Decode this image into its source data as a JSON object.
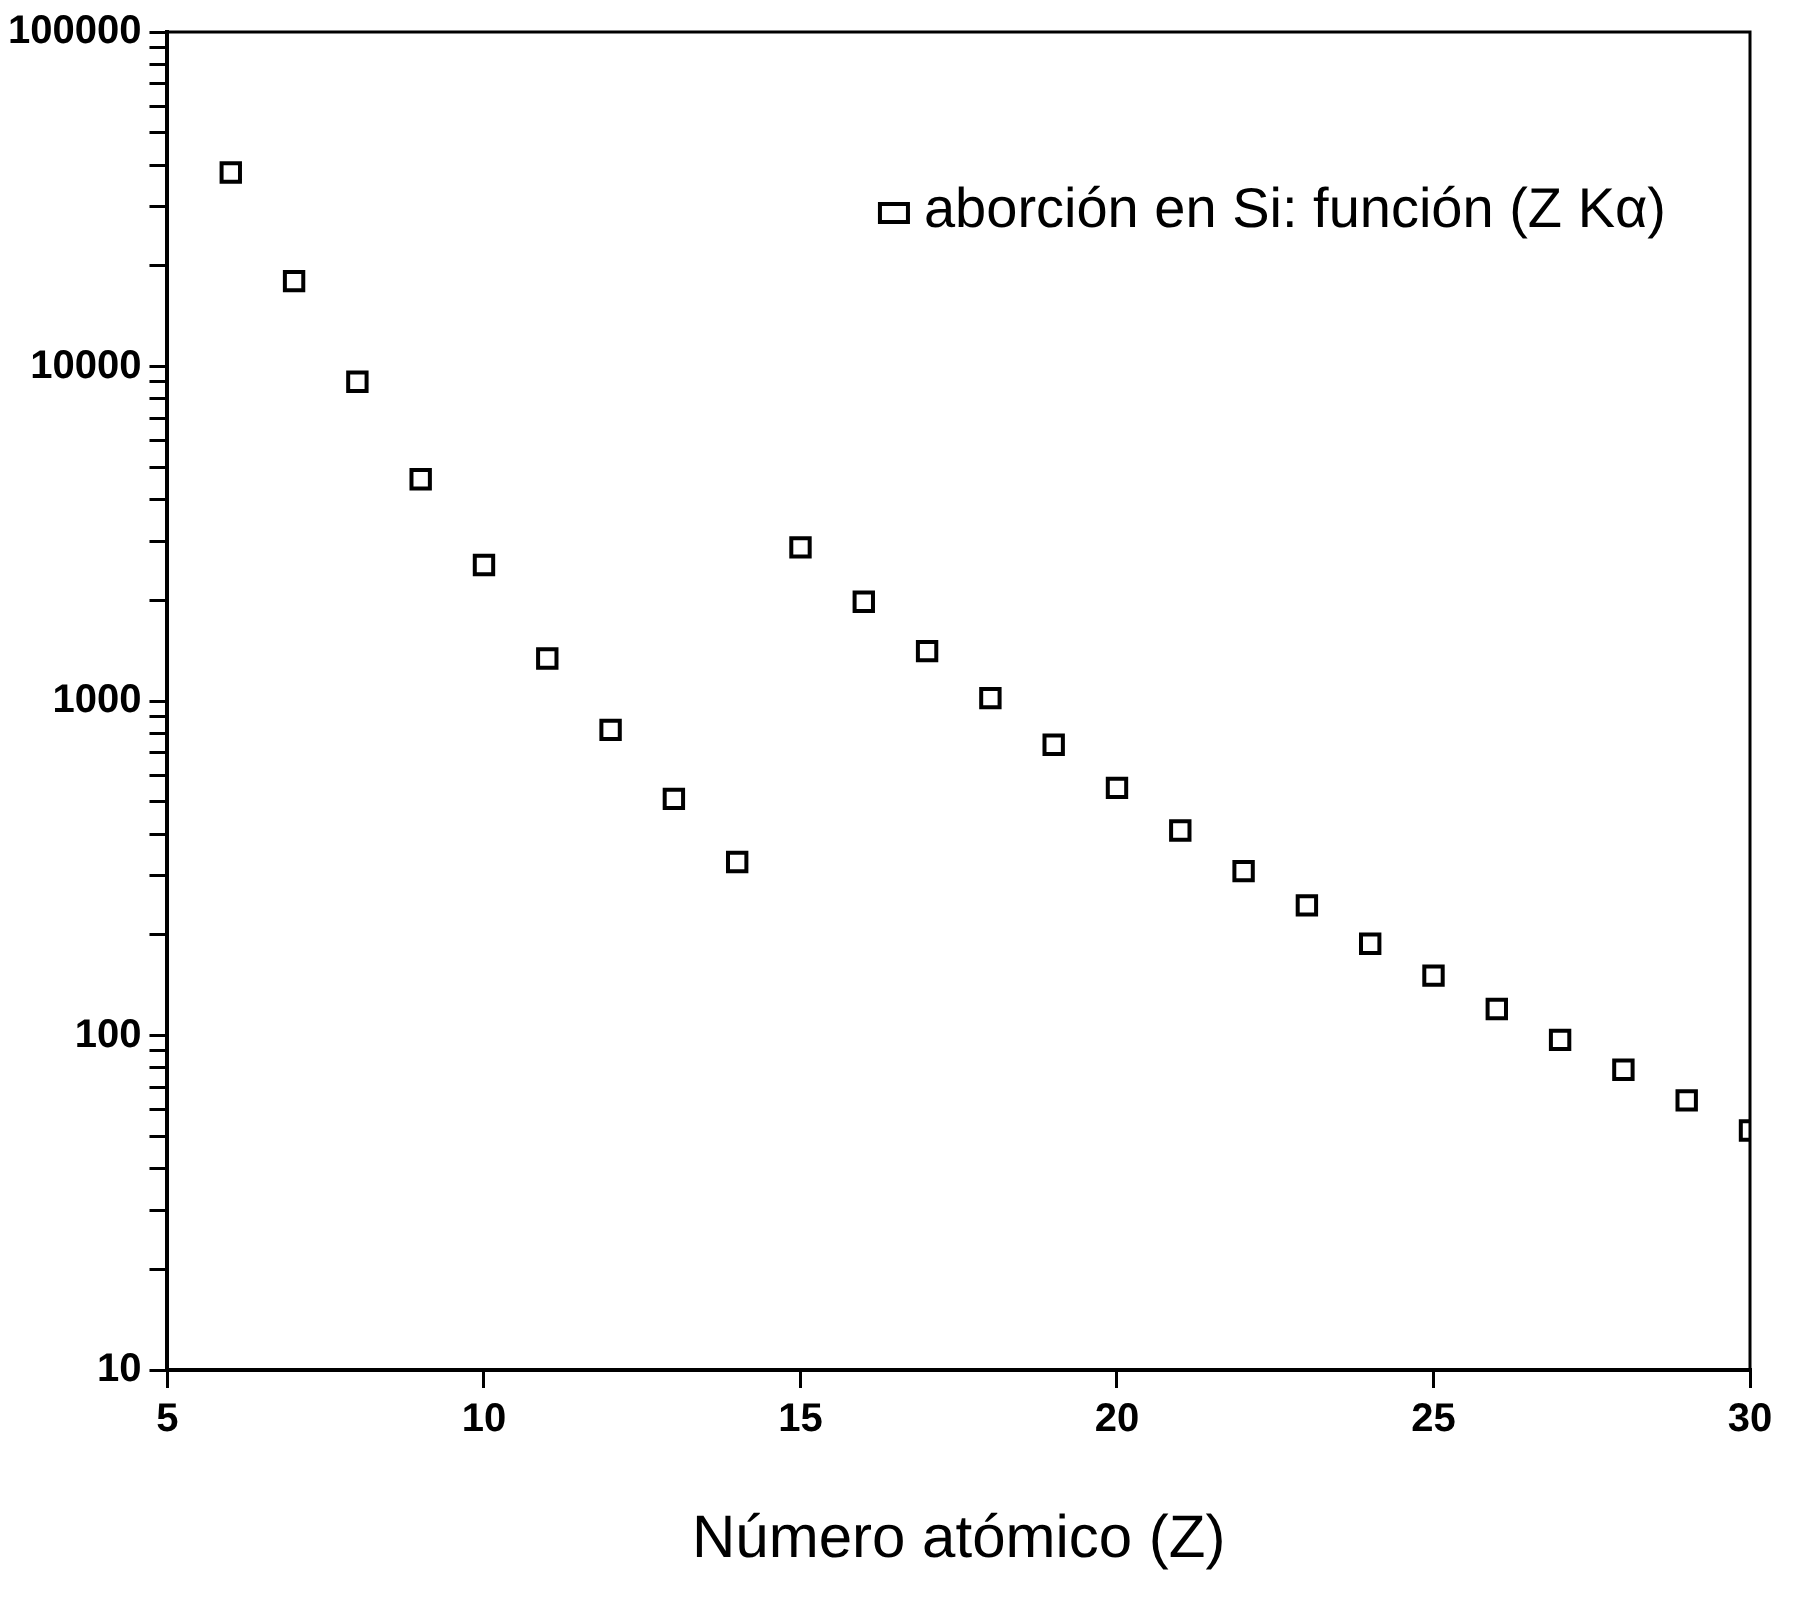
{
  "chart_data": {
    "type": "scatter",
    "xlabel": "Número atómico (Z)",
    "x": [
      6,
      7,
      8,
      9,
      10,
      11,
      12,
      13,
      14,
      15,
      16,
      17,
      18,
      19,
      20,
      21,
      22,
      23,
      24,
      25,
      26,
      27,
      28,
      29,
      30
    ],
    "series": [
      {
        "name": "aborción en Si: función (Z Kα)",
        "color": "#000000",
        "values": [
          38000,
          18000,
          9000,
          4600,
          2550,
          1340,
          820,
          510,
          330,
          2880,
          1980,
          1410,
          1020,
          740,
          550,
          410,
          310,
          245,
          188,
          151,
          120,
          97,
          79,
          64,
          52
        ]
      }
    ],
    "xlim": [
      5,
      30
    ],
    "xticks": [
      5,
      10,
      15,
      20,
      25,
      30
    ],
    "ylim": [
      10,
      100000
    ],
    "yticks": [
      10,
      {
        "value": 20,
        "label": null
      },
      {
        "value": 30,
        "label": null
      },
      {
        "value": 40,
        "label": null
      },
      {
        "value": 50,
        "label": null
      },
      {
        "value": 60,
        "label": null
      },
      {
        "value": 70,
        "label": null
      },
      {
        "value": 80,
        "label": null
      },
      {
        "value": 90,
        "label": null
      },
      100,
      {
        "value": 200,
        "label": null
      },
      {
        "value": 300,
        "label": null
      },
      {
        "value": 400,
        "label": null
      },
      {
        "value": 500,
        "label": null
      },
      {
        "value": 600,
        "label": null
      },
      {
        "value": 700,
        "label": null
      },
      {
        "value": 800,
        "label": null
      },
      {
        "value": 900,
        "label": null
      },
      1000,
      {
        "value": 2000,
        "label": null
      },
      {
        "value": 3000,
        "label": null
      },
      {
        "value": 4000,
        "label": null
      },
      {
        "value": 5000,
        "label": null
      },
      {
        "value": 6000,
        "label": null
      },
      {
        "value": 7000,
        "label": null
      },
      {
        "value": 8000,
        "label": null
      },
      {
        "value": 9000,
        "label": null
      },
      10000,
      {
        "value": 20000,
        "label": null
      },
      {
        "value": 30000,
        "label": null
      },
      {
        "value": 40000,
        "label": null
      },
      {
        "value": 50000,
        "label": null
      },
      {
        "value": 60000,
        "label": null
      },
      {
        "value": 70000,
        "label": null
      },
      {
        "value": 80000,
        "label": null
      },
      {
        "value": 90000,
        "label": null
      },
      100000
    ],
    "log": "y",
    "grid": false,
    "legend": "top right",
    "marker": "square"
  }
}
